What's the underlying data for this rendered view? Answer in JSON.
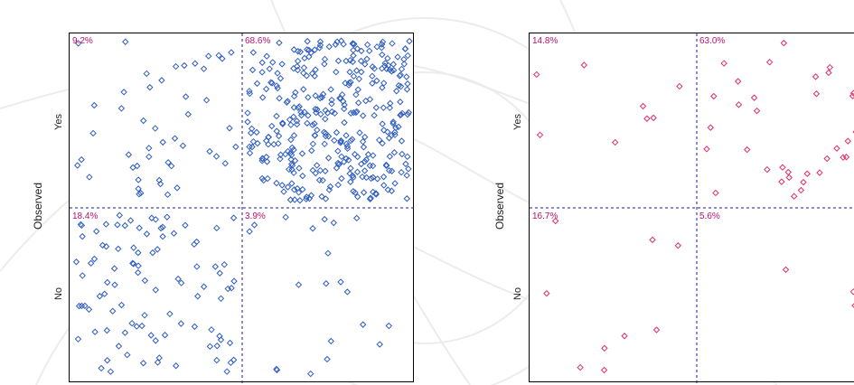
{
  "colors": {
    "left_series": "#2f5dbf",
    "right_series": "#e0306a",
    "percent_label": "#c2106e",
    "divider": "#1a1aa6",
    "background_swirl": "#e6e6e6"
  },
  "chart_data": [
    {
      "type": "scatter",
      "title": "",
      "xlabel": "",
      "ylabel": "Observed",
      "y_categories": [
        "Yes",
        "No"
      ],
      "quadrant_labels": {
        "top_left": "9.2%",
        "top_right": "68.6%",
        "bottom_left": "18.4%",
        "bottom_right": "3.9%"
      },
      "quadrant_percentages": {
        "top_left": 9.2,
        "top_right": 68.6,
        "bottom_left": 18.4,
        "bottom_right": 3.9
      },
      "marker": "diamond-outline",
      "color": "#2f5dbf"
    },
    {
      "type": "scatter",
      "title": "",
      "xlabel": "",
      "ylabel": "Observed",
      "y_categories": [
        "Yes",
        "No"
      ],
      "quadrant_labels": {
        "top_left": "14.8%",
        "top_right": "63.0%",
        "bottom_left": "16.7%",
        "bottom_right": "5.6%"
      },
      "quadrant_percentages": {
        "top_left": 14.8,
        "top_right": 63.0,
        "bottom_left": 16.7,
        "bottom_right": 5.6
      },
      "marker": "diamond-outline",
      "color": "#e0306a"
    }
  ]
}
